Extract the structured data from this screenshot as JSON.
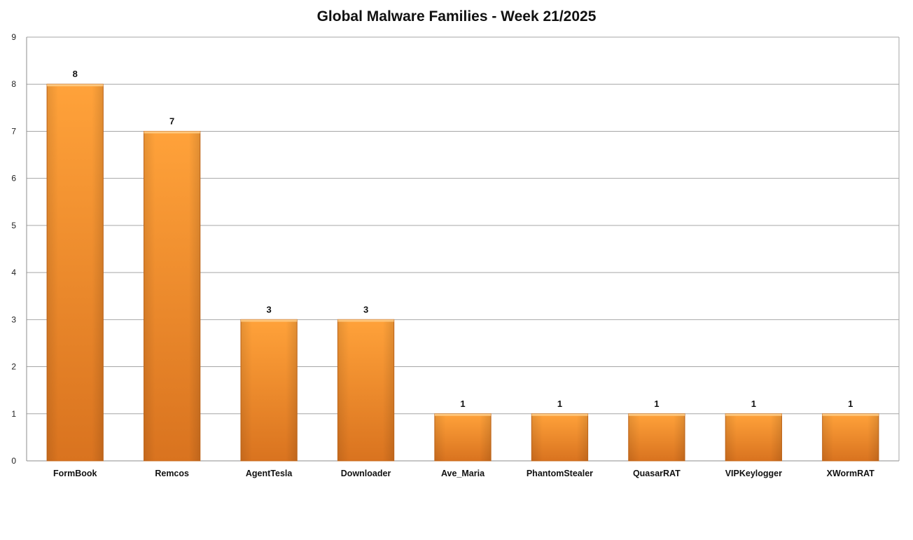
{
  "chart_data": {
    "type": "bar",
    "title": "Global Malware Families - Week 21/2025",
    "categories": [
      "FormBook",
      "Remcos",
      "AgentTesla",
      "Downloader",
      "Ave_Maria",
      "PhantomStealer",
      "QuasarRAT",
      "VIPKeylogger",
      "XWormRAT"
    ],
    "values": [
      8,
      7,
      3,
      3,
      1,
      1,
      1,
      1,
      1
    ],
    "yticks": [
      "0",
      "1",
      "2",
      "3",
      "4",
      "5",
      "6",
      "7",
      "8",
      "9"
    ],
    "ylim": [
      0,
      9
    ],
    "xlabel": "",
    "ylabel": "",
    "grid": true,
    "legend": "none",
    "colors": {
      "bar_top": "#ffa23a",
      "bar_bottom": "#d9731f",
      "bar_edge": "#c76a1c",
      "grid": "#a6a6a6",
      "axis": "#8c8c8c"
    }
  }
}
